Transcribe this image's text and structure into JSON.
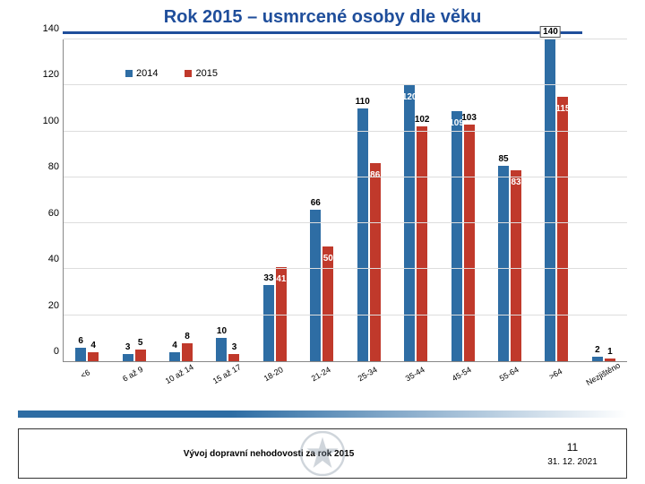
{
  "title": {
    "text": "Rok 2015 – usmrcené osoby dle věku",
    "color": "#1f4e9b",
    "fontsize": 20
  },
  "underline_color": "#1f4e9b",
  "chart": {
    "type": "bar",
    "ylim": [
      0,
      140
    ],
    "ytick_step": 20,
    "grid_color": "#dddddd",
    "axis_color": "#888888",
    "label_fontsize": 11,
    "categories": [
      "<6",
      "6 až 9",
      "10 až 14",
      "15 až 17",
      "18-20",
      "21-24",
      "25-34",
      "35-44",
      "45-54",
      "55-64",
      ">64",
      "Nezjištěno"
    ],
    "series": [
      {
        "name": "2014",
        "color": "#2e6da4",
        "values": [
          6,
          3,
          4,
          10,
          33,
          66,
          110,
          120,
          109,
          85,
          140,
          2
        ],
        "label_pos": [
          "top",
          "top",
          "top",
          "top",
          "top",
          "top",
          "top",
          "mid",
          "mid",
          "top",
          "box",
          "top"
        ]
      },
      {
        "name": "2015",
        "color": "#c0392b",
        "values": [
          4,
          5,
          8,
          3,
          41,
          50,
          86,
          102,
          103,
          83,
          115,
          1
        ],
        "label_pos": [
          "top",
          "top",
          "top",
          "top",
          "mid",
          "mid",
          "mid",
          "top",
          "top",
          "mid",
          "mid",
          "top"
        ]
      }
    ]
  },
  "legend": {
    "items": [
      "2014",
      "2015"
    ],
    "colors": [
      "#2e6da4",
      "#c0392b"
    ]
  },
  "stripe_color": "#2e6da4",
  "footer": {
    "caption": "Vývoj dopravní nehodovosti za rok 2015",
    "page": "11",
    "date": "31. 12. 2021"
  }
}
